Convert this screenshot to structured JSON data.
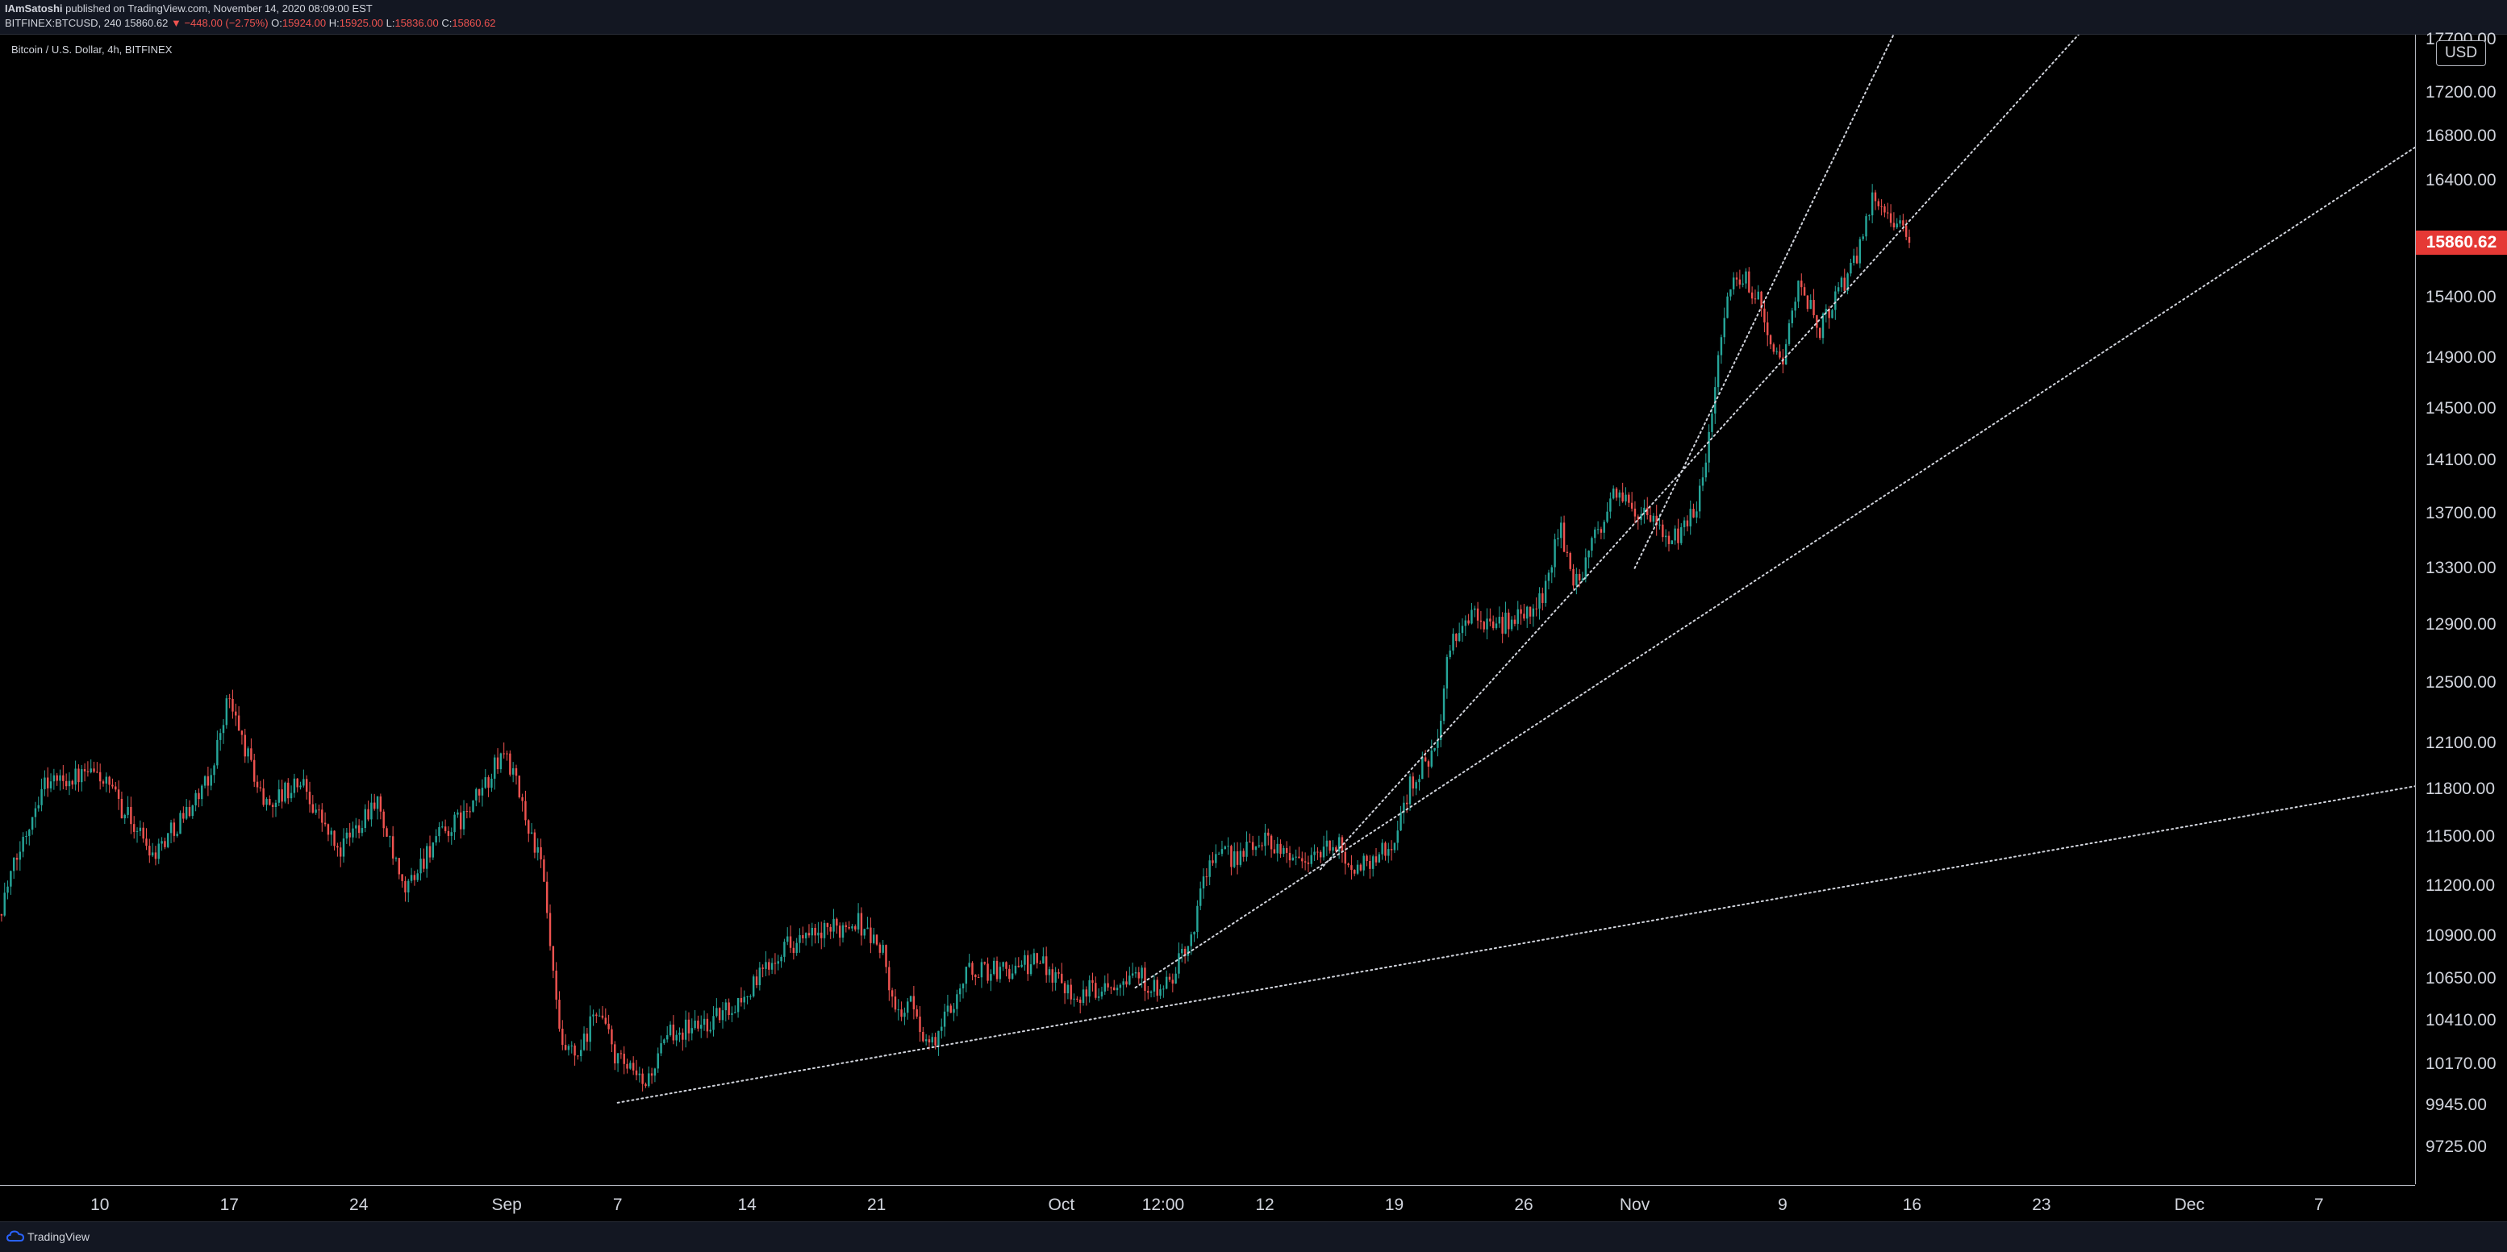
{
  "header": {
    "author": "IAmSatoshi",
    "published_text": "published on TradingView.com, November 14, 2020 08:09:00 EST",
    "symbol_line": "BITFINEX:BTCUSD, 240",
    "last": "15860.62",
    "change": "▼ −448.00 (−2.75%)",
    "open_label": "O:",
    "open": "15924.00",
    "high_label": "H:",
    "high": "15925.00",
    "low_label": "L:",
    "low": "15836.00",
    "close_label": "C:",
    "close": "15860.62"
  },
  "chart_title": "Bitcoin / U.S. Dollar, 4h, BITFINEX",
  "currency_badge": "USD",
  "last_price_label": "15860.62",
  "footer": {
    "brand": "TradingView"
  },
  "colors": {
    "up": "#26a69a",
    "down": "#ef5350",
    "background": "#000000",
    "trendline": "#d1d4dc",
    "last_price_bg": "#e53935"
  },
  "chart_data": {
    "type": "candlestick",
    "title": "Bitcoin / U.S. Dollar, 4h, BITFINEX",
    "y_ticks": [
      "17700.00",
      "17200.00",
      "16800.00",
      "16400.00",
      "15860.62",
      "15400.00",
      "14900.00",
      "14500.00",
      "14100.00",
      "13700.00",
      "13300.00",
      "12900.00",
      "12500.00",
      "12100.00",
      "11800.00",
      "11500.00",
      "11200.00",
      "10900.00",
      "10650.00",
      "10410.00",
      "10170.00",
      "9945.00",
      "9725.00"
    ],
    "y_tick_values": [
      17700,
      17200,
      16800,
      16400,
      15860.62,
      15400,
      14900,
      14500,
      14100,
      13700,
      13300,
      12900,
      12500,
      12100,
      11800,
      11500,
      11200,
      10900,
      10650,
      10410,
      10170,
      9945,
      9725
    ],
    "x_ticks": [
      {
        "label": "10",
        "day": 10
      },
      {
        "label": "17",
        "day": 17
      },
      {
        "label": "24",
        "day": 24
      },
      {
        "label": "Sep",
        "day": 32
      },
      {
        "label": "7",
        "day": 38
      },
      {
        "label": "14",
        "day": 45
      },
      {
        "label": "21",
        "day": 52
      },
      {
        "label": "Oct",
        "day": 62
      },
      {
        "label": "12:00",
        "day": 67.5
      },
      {
        "label": "12",
        "day": 73
      },
      {
        "label": "19",
        "day": 80
      },
      {
        "label": "26",
        "day": 87
      },
      {
        "label": "Nov",
        "day": 93
      },
      {
        "label": "9",
        "day": 101
      },
      {
        "label": "16",
        "day": 108
      },
      {
        "label": "23",
        "day": 115
      },
      {
        "label": "Dec",
        "day": 123
      },
      {
        "label": "7",
        "day": 130
      }
    ],
    "x_range_days": [
      4.6,
      135.2
    ],
    "y_range": [
      9530,
      17750
    ],
    "scale": "log",
    "key_points": [
      {
        "day": 4.6,
        "price": 11030
      },
      {
        "day": 7,
        "price": 11850
      },
      {
        "day": 10,
        "price": 11900
      },
      {
        "day": 13,
        "price": 11400
      },
      {
        "day": 16,
        "price": 11850
      },
      {
        "day": 17,
        "price": 12400
      },
      {
        "day": 19,
        "price": 11700
      },
      {
        "day": 21,
        "price": 11850
      },
      {
        "day": 23,
        "price": 11400
      },
      {
        "day": 25,
        "price": 11750
      },
      {
        "day": 26.5,
        "price": 11150
      },
      {
        "day": 28,
        "price": 11450
      },
      {
        "day": 30,
        "price": 11650
      },
      {
        "day": 32,
        "price": 12050
      },
      {
        "day": 34,
        "price": 11300
      },
      {
        "day": 35,
        "price": 10250
      },
      {
        "day": 36,
        "price": 10200
      },
      {
        "day": 37,
        "price": 10500
      },
      {
        "day": 38,
        "price": 10200
      },
      {
        "day": 39.5,
        "price": 10050
      },
      {
        "day": 41,
        "price": 10350
      },
      {
        "day": 43,
        "price": 10400
      },
      {
        "day": 45,
        "price": 10550
      },
      {
        "day": 47,
        "price": 10850
      },
      {
        "day": 49,
        "price": 10900
      },
      {
        "day": 51,
        "price": 11000
      },
      {
        "day": 52.5,
        "price": 10800
      },
      {
        "day": 53,
        "price": 10450
      },
      {
        "day": 54,
        "price": 10500
      },
      {
        "day": 55,
        "price": 10250
      },
      {
        "day": 57,
        "price": 10700
      },
      {
        "day": 59,
        "price": 10700
      },
      {
        "day": 61,
        "price": 10750
      },
      {
        "day": 62,
        "price": 10650
      },
      {
        "day": 63,
        "price": 10550
      },
      {
        "day": 64,
        "price": 10600
      },
      {
        "day": 66,
        "price": 10700
      },
      {
        "day": 67.5,
        "price": 10550
      },
      {
        "day": 69,
        "price": 10850
      },
      {
        "day": 70,
        "price": 11350
      },
      {
        "day": 72,
        "price": 11400
      },
      {
        "day": 73,
        "price": 11500
      },
      {
        "day": 75,
        "price": 11350
      },
      {
        "day": 77,
        "price": 11450
      },
      {
        "day": 78,
        "price": 11300
      },
      {
        "day": 80,
        "price": 11450
      },
      {
        "day": 81,
        "price": 11850
      },
      {
        "day": 82.5,
        "price": 12100
      },
      {
        "day": 83,
        "price": 12700
      },
      {
        "day": 84,
        "price": 12950
      },
      {
        "day": 86,
        "price": 12900
      },
      {
        "day": 88,
        "price": 13050
      },
      {
        "day": 89,
        "price": 13600
      },
      {
        "day": 90,
        "price": 13150
      },
      {
        "day": 91,
        "price": 13550
      },
      {
        "day": 92,
        "price": 13850
      },
      {
        "day": 93,
        "price": 13750
      },
      {
        "day": 94.5,
        "price": 13550
      },
      {
        "day": 95.5,
        "price": 13500
      },
      {
        "day": 96.5,
        "price": 13800
      },
      {
        "day": 97,
        "price": 14200
      },
      {
        "day": 98,
        "price": 15400
      },
      {
        "day": 99,
        "price": 15600
      },
      {
        "day": 100,
        "price": 15300
      },
      {
        "day": 101,
        "price": 14800
      },
      {
        "day": 102,
        "price": 15600
      },
      {
        "day": 103,
        "price": 15100
      },
      {
        "day": 104,
        "price": 15400
      },
      {
        "day": 105,
        "price": 15700
      },
      {
        "day": 106,
        "price": 16300
      },
      {
        "day": 107,
        "price": 16100
      },
      {
        "day": 107.8,
        "price": 15860
      }
    ],
    "trendlines": [
      {
        "from": {
          "day": 38,
          "price": 9960
        },
        "to": {
          "day": 135.2,
          "price": 11820
        }
      },
      {
        "from": {
          "day": 66,
          "price": 10600
        },
        "to": {
          "day": 135.2,
          "price": 16700
        }
      },
      {
        "from": {
          "day": 76,
          "price": 11300
        },
        "to": {
          "day": 117,
          "price": 17750
        }
      },
      {
        "from": {
          "day": 93,
          "price": 13300
        },
        "to": {
          "day": 107,
          "price": 17750
        }
      }
    ]
  }
}
